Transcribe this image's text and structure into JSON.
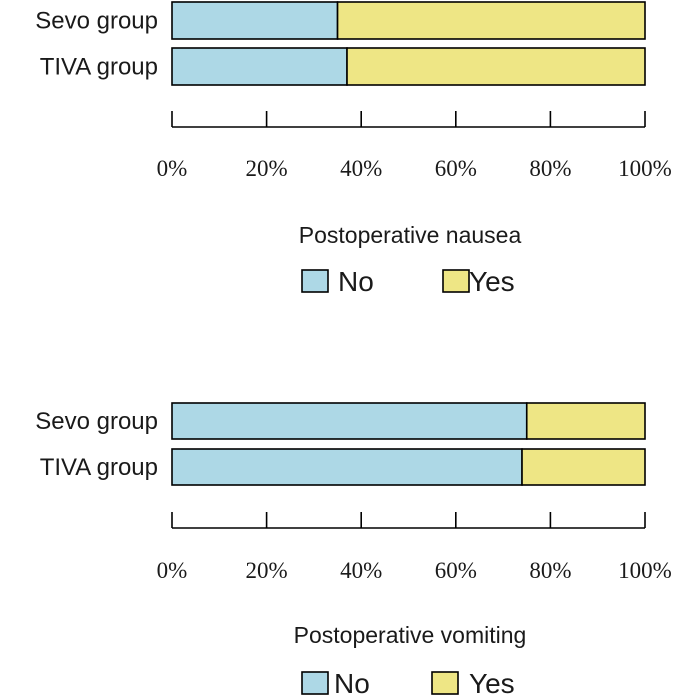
{
  "colors": {
    "no": "#add8e6",
    "yes": "#eee685",
    "stroke": "#000000"
  },
  "chart_data": [
    {
      "type": "bar",
      "orientation": "horizontal",
      "stacked": "percent",
      "categories": [
        "Sevo group",
        "TIVA group"
      ],
      "series": [
        {
          "name": "No",
          "values": [
            35,
            37
          ]
        },
        {
          "name": "Yes",
          "values": [
            65,
            63
          ]
        }
      ],
      "xlim": [
        0,
        100
      ],
      "xticks": [
        "0%",
        "20%",
        "40%",
        "60%",
        "80%",
        "100%"
      ],
      "legend_title": "Postoperative nausea",
      "legend_position": "bottom"
    },
    {
      "type": "bar",
      "orientation": "horizontal",
      "stacked": "percent",
      "categories": [
        "Sevo group",
        "TIVA group"
      ],
      "series": [
        {
          "name": "No",
          "values": [
            75,
            74
          ]
        },
        {
          "name": "Yes",
          "values": [
            25,
            26
          ]
        }
      ],
      "xlim": [
        0,
        100
      ],
      "xticks": [
        "0%",
        "20%",
        "40%",
        "60%",
        "80%",
        "100%"
      ],
      "legend_title": "Postoperative vomiting",
      "legend_position": "bottom"
    }
  ]
}
